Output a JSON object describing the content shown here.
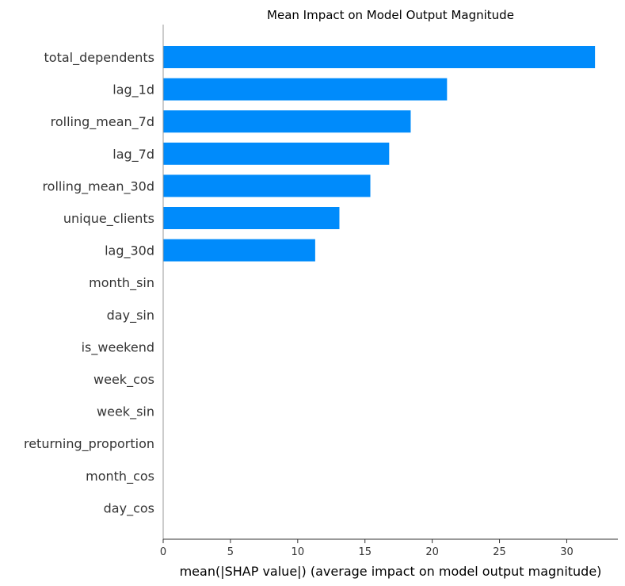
{
  "chart_data": {
    "type": "bar",
    "orientation": "horizontal",
    "title": "Mean Impact on Model Output Magnitude",
    "xlabel": "mean(|SHAP value|) (average impact on model output magnitude)",
    "ylabel": "",
    "categories": [
      "total_dependents",
      "lag_1d",
      "rolling_mean_7d",
      "lag_7d",
      "rolling_mean_30d",
      "unique_clients",
      "lag_30d",
      "month_sin",
      "day_sin",
      "is_weekend",
      "week_cos",
      "week_sin",
      "returning_proportion",
      "month_cos",
      "day_cos"
    ],
    "values": [
      32.1,
      21.1,
      18.4,
      16.8,
      15.4,
      13.1,
      11.3,
      0,
      0,
      0,
      0,
      0,
      0,
      0,
      0
    ],
    "xlim": [
      0,
      33.8
    ],
    "xticks": [
      0,
      5,
      10,
      15,
      20,
      25,
      30
    ],
    "bar_color": "#008bfb",
    "grid": false,
    "legend": "none"
  }
}
